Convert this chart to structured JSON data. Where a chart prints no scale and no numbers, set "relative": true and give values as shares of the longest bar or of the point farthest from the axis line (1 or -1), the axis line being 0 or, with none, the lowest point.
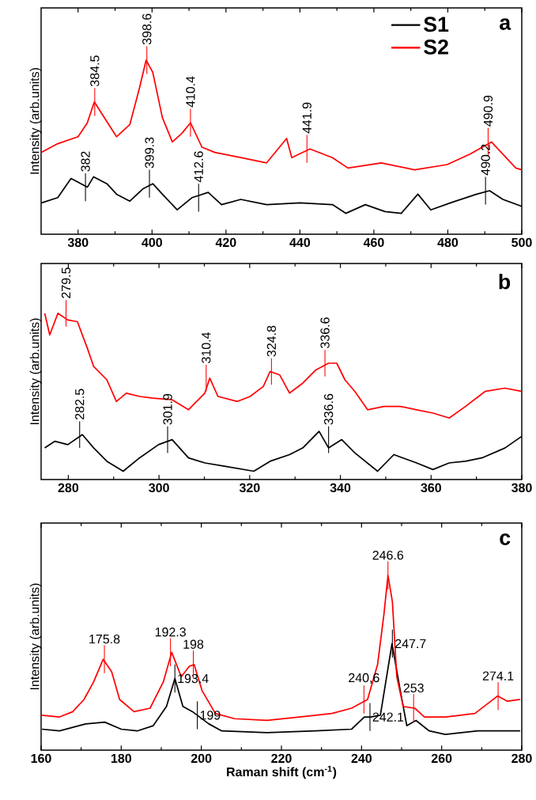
{
  "chart_data": [
    {
      "type": "line",
      "title": "a",
      "ylabel": "Intensity (arb.units)",
      "relative": true,
      "legend": "top right",
      "xlim": [
        370,
        500
      ],
      "xticks": [
        380,
        400,
        420,
        440,
        460,
        480,
        500
      ],
      "series": [
        {
          "name": "S1",
          "color": "#000000",
          "x": [
            370.1,
            374.5,
            378.1,
            382.5,
            384.2,
            387.8,
            390.4,
            394,
            397.5,
            400.2,
            402.8,
            406.8,
            410.8,
            415.2,
            418.8,
            424,
            431,
            440,
            448.8,
            452.4,
            457.7,
            463,
            467.4,
            471.9,
            475.4,
            480.7,
            487.8,
            491.3,
            494.9,
            500
          ],
          "values": [
            0.18,
            0.21,
            0.32,
            0.27,
            0.33,
            0.29,
            0.23,
            0.19,
            0.26,
            0.29,
            0.23,
            0.14,
            0.21,
            0.24,
            0.17,
            0.2,
            0.17,
            0.18,
            0.17,
            0.12,
            0.17,
            0.13,
            0.12,
            0.23,
            0.14,
            0.18,
            0.23,
            0.25,
            0.2,
            0.16
          ]
        },
        {
          "name": "S2",
          "color": "#ff0000",
          "x": [
            370.1,
            374.5,
            380,
            382.5,
            384.4,
            386.5,
            390.4,
            394,
            396.6,
            398.4,
            400.2,
            402.8,
            405.5,
            408.1,
            410.4,
            413.5,
            417,
            424,
            431,
            436.4,
            437.8,
            442.7,
            448.8,
            453,
            462,
            471,
            479.8,
            486,
            491.8,
            494.9,
            498.4,
            500
          ],
          "values": [
            0.47,
            0.52,
            0.56,
            0.64,
            0.76,
            0.69,
            0.56,
            0.63,
            0.84,
            1.0,
            0.93,
            0.67,
            0.53,
            0.58,
            0.64,
            0.5,
            0.47,
            0.44,
            0.41,
            0.55,
            0.44,
            0.49,
            0.44,
            0.38,
            0.41,
            0.37,
            0.4,
            0.46,
            0.53,
            0.46,
            0.38,
            0.37
          ]
        }
      ],
      "annotations": [
        {
          "text": "384.5",
          "x": 384.5,
          "y": 0.76
        },
        {
          "text": "398.6",
          "x": 398.6,
          "y": 1.0
        },
        {
          "text": "410.4",
          "x": 410.4,
          "y": 0.64
        },
        {
          "text": "441.9",
          "x": 441.9,
          "y": 0.49
        },
        {
          "text": "490.9",
          "x": 490.9,
          "y": 0.53
        },
        {
          "text": "382",
          "x": 382,
          "y": 0.27
        },
        {
          "text": "399.3",
          "x": 399.3,
          "y": 0.29
        },
        {
          "text": "412.6",
          "x": 412.6,
          "y": 0.21
        },
        {
          "text": "490.2",
          "x": 490.2,
          "y": 0.25
        }
      ]
    },
    {
      "type": "line",
      "title": "b",
      "ylabel": "Intensity (arb.units)",
      "relative": true,
      "xlim": [
        274,
        380
      ],
      "xticks": [
        280,
        300,
        320,
        340,
        360,
        380
      ],
      "series": [
        {
          "color": "#000000",
          "x": [
            274.8,
            277,
            279.9,
            283.1,
            285.6,
            288.5,
            292.1,
            295.7,
            299.9,
            302.9,
            306.5,
            310.1,
            314.4,
            320.9,
            324.5,
            328.8,
            331.7,
            335.3,
            337.4,
            340.3,
            343.2,
            348.2,
            351.8,
            356.8,
            360.4,
            364,
            367.6,
            371.2,
            376.3,
            380
          ],
          "values": [
            0.19,
            0.23,
            0.21,
            0.27,
            0.19,
            0.11,
            0.05,
            0.13,
            0.21,
            0.24,
            0.13,
            0.1,
            0.08,
            0.05,
            0.11,
            0.15,
            0.19,
            0.29,
            0.19,
            0.24,
            0.16,
            0.05,
            0.15,
            0.1,
            0.06,
            0.1,
            0.11,
            0.13,
            0.19,
            0.26
          ]
        },
        {
          "color": "#ff0000",
          "x": [
            274.8,
            275.9,
            277.7,
            279.9,
            282,
            284.2,
            285.6,
            288.5,
            290.6,
            292.8,
            295.7,
            298.6,
            302.9,
            306.5,
            310.1,
            311.2,
            313,
            317.3,
            320.1,
            323,
            324.5,
            326.6,
            328.8,
            331.7,
            334.6,
            337.4,
            339.2,
            341,
            343.2,
            346,
            349.6,
            353.2,
            356.8,
            360.4,
            364,
            367.6,
            371.9,
            376.3,
            380
          ],
          "values": [
            1.0,
            0.87,
            1.0,
            0.96,
            0.95,
            0.79,
            0.68,
            0.6,
            0.47,
            0.52,
            0.5,
            0.49,
            0.48,
            0.42,
            0.52,
            0.61,
            0.5,
            0.47,
            0.5,
            0.56,
            0.65,
            0.63,
            0.52,
            0.58,
            0.66,
            0.7,
            0.7,
            0.6,
            0.53,
            0.42,
            0.44,
            0.44,
            0.42,
            0.4,
            0.37,
            0.44,
            0.53,
            0.55,
            0.53
          ]
        }
      ],
      "annotations": [
        {
          "text": "279.5",
          "x": 279.5,
          "y": 1.0
        },
        {
          "text": "310.4",
          "x": 310.4,
          "y": 0.61
        },
        {
          "text": "324.8",
          "x": 324.8,
          "y": 0.65
        },
        {
          "text": "336.6",
          "x": 336.6,
          "y": 0.7
        },
        {
          "text": "282.5",
          "x": 282.5,
          "y": 0.27
        },
        {
          "text": "301.9",
          "x": 301.9,
          "y": 0.24
        },
        {
          "text": "336.6",
          "x": 337.4,
          "y": 0.24
        }
      ]
    },
    {
      "type": "line",
      "title": "c",
      "ylabel": "Intensity (arb.units)",
      "xlabel": "Raman shift (cm$^{-1}$)",
      "relative": true,
      "xlim": [
        160,
        280
      ],
      "xticks": [
        160,
        180,
        200,
        220,
        240,
        260,
        280
      ],
      "series": [
        {
          "color": "#000000",
          "x": [
            160.2,
            164.6,
            171.1,
            175.9,
            180,
            184,
            188,
            191.3,
            193.4,
            195.4,
            197.8,
            201.9,
            205.1,
            216.4,
            228.5,
            237.5,
            240.7,
            242.3,
            244.7,
            247.6,
            249.6,
            251.3,
            253.6,
            256.9,
            260.9,
            269,
            279.6
          ],
          "values": [
            0.12,
            0.11,
            0.15,
            0.16,
            0.12,
            0.11,
            0.14,
            0.25,
            0.41,
            0.25,
            0.22,
            0.15,
            0.11,
            0.1,
            0.11,
            0.12,
            0.19,
            0.19,
            0.2,
            0.61,
            0.35,
            0.14,
            0.17,
            0.11,
            0.09,
            0.11,
            0.11
          ]
        },
        {
          "color": "#ff0000",
          "x": [
            160.2,
            164.6,
            167.9,
            170.7,
            173.1,
            175.5,
            177.6,
            179.6,
            183.2,
            187.2,
            190.5,
            192.6,
            195,
            197,
            198.2,
            200.2,
            203.5,
            208.3,
            216.4,
            224.5,
            232.6,
            237.5,
            241.5,
            244,
            245.6,
            246.6,
            247.7,
            248.8,
            250.4,
            253.3,
            255.7,
            261,
            268.3,
            272.3,
            274,
            276.4,
            279.6
          ],
          "values": [
            0.2,
            0.19,
            0.22,
            0.29,
            0.39,
            0.52,
            0.45,
            0.29,
            0.22,
            0.24,
            0.39,
            0.56,
            0.42,
            0.48,
            0.49,
            0.34,
            0.21,
            0.18,
            0.17,
            0.19,
            0.21,
            0.24,
            0.29,
            0.49,
            0.78,
            1.0,
            0.85,
            0.42,
            0.25,
            0.24,
            0.19,
            0.19,
            0.21,
            0.28,
            0.31,
            0.28,
            0.29
          ]
        }
      ],
      "annotations": [
        {
          "text": "175.8",
          "x": 175.8,
          "y": 0.52
        },
        {
          "text": "192.3",
          "x": 192.3,
          "y": 0.56
        },
        {
          "text": "193.4",
          "x": 193.4,
          "y": 0.41
        },
        {
          "text": "198",
          "x": 198,
          "y": 0.49
        },
        {
          "text": "199",
          "x": 199,
          "y": 0.2
        },
        {
          "text": "240,6",
          "x": 240.6,
          "y": 0.29
        },
        {
          "text": "242.1",
          "x": 242.1,
          "y": 0.19
        },
        {
          "text": "246.6",
          "x": 246.6,
          "y": 1.0
        },
        {
          "text": "247.7",
          "x": 247.7,
          "y": 0.61
        },
        {
          "text": "253",
          "x": 253,
          "y": 0.24
        },
        {
          "text": "274.1",
          "x": 274.1,
          "y": 0.31
        }
      ]
    }
  ]
}
